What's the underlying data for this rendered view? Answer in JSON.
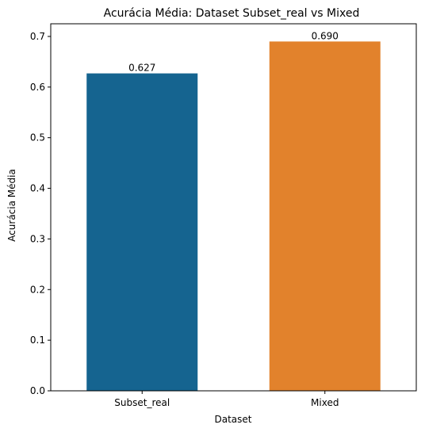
{
  "chart_data": {
    "type": "bar",
    "title": "Acurácia Média: Dataset Subset_real vs Mixed",
    "xlabel": "Dataset",
    "ylabel": "Acurácia Média",
    "categories": [
      "Subset_real",
      "Mixed"
    ],
    "values": [
      0.627,
      0.69
    ],
    "data_labels": [
      "0.627",
      "0.690"
    ],
    "colors": [
      "#156490",
      "#e2822c"
    ],
    "ylim": [
      0,
      0.725
    ],
    "yticks": [
      0.0,
      0.1,
      0.2,
      0.3,
      0.4,
      0.5,
      0.6,
      0.7
    ],
    "ytick_labels": [
      "0.0",
      "0.1",
      "0.2",
      "0.3",
      "0.4",
      "0.5",
      "0.6",
      "0.7"
    ],
    "grid": false,
    "legend": "none"
  }
}
